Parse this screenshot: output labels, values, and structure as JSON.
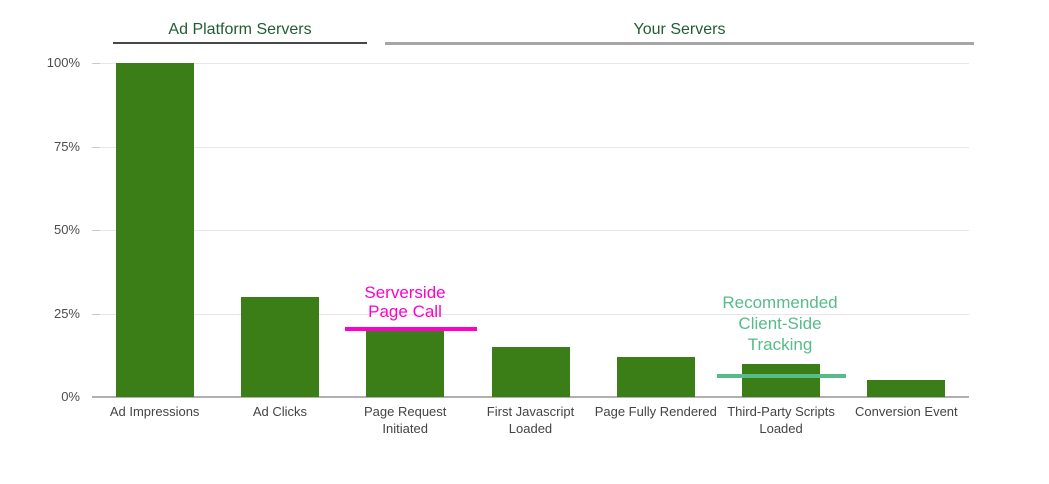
{
  "chart_data": {
    "type": "bar",
    "title": "",
    "xlabel": "",
    "ylabel": "",
    "categories": [
      "Ad Impressions",
      "Ad Clicks",
      "Page Request Initiated",
      "First Javascript Loaded",
      "Page Fully Rendered",
      "Third-Party Scripts Loaded",
      "Conversion Event"
    ],
    "values": [
      100,
      30,
      20,
      15,
      12,
      10,
      5
    ],
    "value_unit": "%",
    "ylim": [
      0,
      100
    ],
    "yticks": [
      {
        "value": 0,
        "label": "0%"
      },
      {
        "value": 25,
        "label": "25%"
      },
      {
        "value": 50,
        "label": "50%"
      },
      {
        "value": 75,
        "label": "75%"
      },
      {
        "value": 100,
        "label": "100%"
      }
    ],
    "grid": true,
    "legend": "none",
    "bar_color": "#3b7d16",
    "groups": [
      {
        "label": "Ad Platform Servers",
        "category_span": [
          0,
          1
        ],
        "underline_color": "#474747"
      },
      {
        "label": "Your Servers",
        "category_span": [
          2,
          6
        ],
        "underline_color": "#a6a6a6"
      }
    ],
    "annotations": [
      {
        "label": "Serverside\nPage Call",
        "color": "#ff00cc",
        "line_value_pct": 20,
        "category": "Page Request Initiated"
      },
      {
        "label": "Recommended\nClient-Side\nTracking",
        "color": "#57bb8a",
        "line_value_pct": 6,
        "category": "Third-Party Scripts Loaded"
      }
    ]
  },
  "colors": {
    "bar": "#3b7d16",
    "group_header_text": "#215c35",
    "gridline": "#e7e7e7",
    "axis_line": "#b0b0b0",
    "tick_label": "#4d4d4d",
    "category_label": "#444444",
    "annotation_magenta": "#ff00cc",
    "annotation_teal": "#57bb8a"
  }
}
